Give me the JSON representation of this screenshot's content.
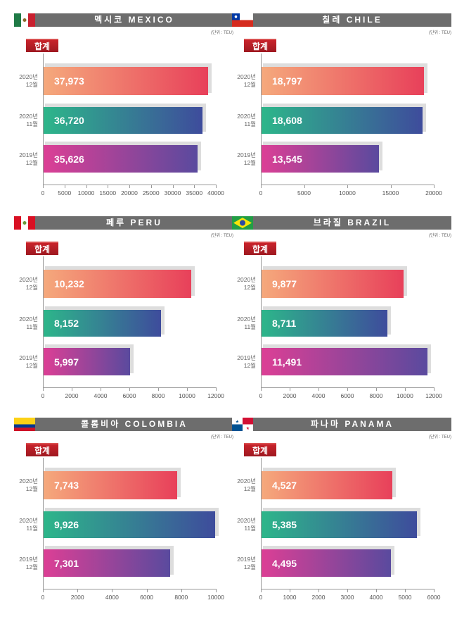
{
  "unit": "(단위 : TEU)",
  "badge": "합계",
  "row_labels": [
    [
      "2020년",
      "12월"
    ],
    [
      "2020년",
      "11월"
    ],
    [
      "2019년",
      "12월"
    ]
  ],
  "colors": {
    "bar1": [
      "#f5a97c",
      "#e8405a"
    ],
    "bar2": [
      "#2db68a",
      "#3e4c9c"
    ],
    "bar3": [
      "#dc3f95",
      "#5a4a9e"
    ],
    "titlebar": "#6d6d6d"
  },
  "chart_data": [
    {
      "type": "bar",
      "title": "멕시코 MEXICO",
      "flag": "mexico-flag",
      "categories": [
        "2020년 12월",
        "2020년 11월",
        "2019년 12월"
      ],
      "values": [
        37973,
        36720,
        35626
      ],
      "labels": [
        "37,973",
        "36,720",
        "35,626"
      ],
      "xlim": [
        0,
        40000
      ],
      "ticks": [
        "0",
        "5000",
        "10000",
        "15000",
        "20000",
        "25000",
        "30000",
        "35000",
        "40000"
      ]
    },
    {
      "type": "bar",
      "title": "칠레 CHILE",
      "flag": "chile-flag",
      "categories": [
        "2020년 12월",
        "2020년 11월",
        "2019년 12월"
      ],
      "values": [
        18797,
        18608,
        13545
      ],
      "labels": [
        "18,797",
        "18,608",
        "13,545"
      ],
      "xlim": [
        0,
        20000
      ],
      "ticks": [
        "0",
        "5000",
        "10000",
        "15000",
        "20000"
      ]
    },
    {
      "type": "bar",
      "title": "페루 PERU",
      "flag": "peru-flag",
      "categories": [
        "2020년 12월",
        "2020년 11월",
        "2019년 12월"
      ],
      "values": [
        10232,
        8152,
        5997
      ],
      "labels": [
        "10,232",
        "8,152",
        "5,997"
      ],
      "xlim": [
        0,
        12000
      ],
      "ticks": [
        "0",
        "2000",
        "4000",
        "6000",
        "8000",
        "10000",
        "12000"
      ]
    },
    {
      "type": "bar",
      "title": "브라질 BRAZIL",
      "flag": "brazil-flag",
      "categories": [
        "2020년 12월",
        "2020년 11월",
        "2019년 12월"
      ],
      "values": [
        9877,
        8711,
        11491
      ],
      "labels": [
        "9,877",
        "8,711",
        "11,491"
      ],
      "xlim": [
        0,
        12000
      ],
      "ticks": [
        "0",
        "2000",
        "4000",
        "6000",
        "8000",
        "10000",
        "12000"
      ]
    },
    {
      "type": "bar",
      "title": "콜롬비아 COLOMBIA",
      "flag": "colombia-flag",
      "categories": [
        "2020년 12월",
        "2020년 11월",
        "2019년 12월"
      ],
      "values": [
        7743,
        9926,
        7301
      ],
      "labels": [
        "7,743",
        "9,926",
        "7,301"
      ],
      "xlim": [
        0,
        10000
      ],
      "ticks": [
        "0",
        "2000",
        "4000",
        "6000",
        "8000",
        "10000"
      ]
    },
    {
      "type": "bar",
      "title": "파나마 PANAMA",
      "flag": "panama-flag",
      "categories": [
        "2020년 12월",
        "2020년 11월",
        "2019년 12월"
      ],
      "values": [
        4527,
        5385,
        4495
      ],
      "labels": [
        "4,527",
        "5,385",
        "4,495"
      ],
      "xlim": [
        0,
        6000
      ],
      "ticks": [
        "0",
        "1000",
        "2000",
        "3000",
        "4000",
        "5000",
        "6000"
      ]
    }
  ]
}
